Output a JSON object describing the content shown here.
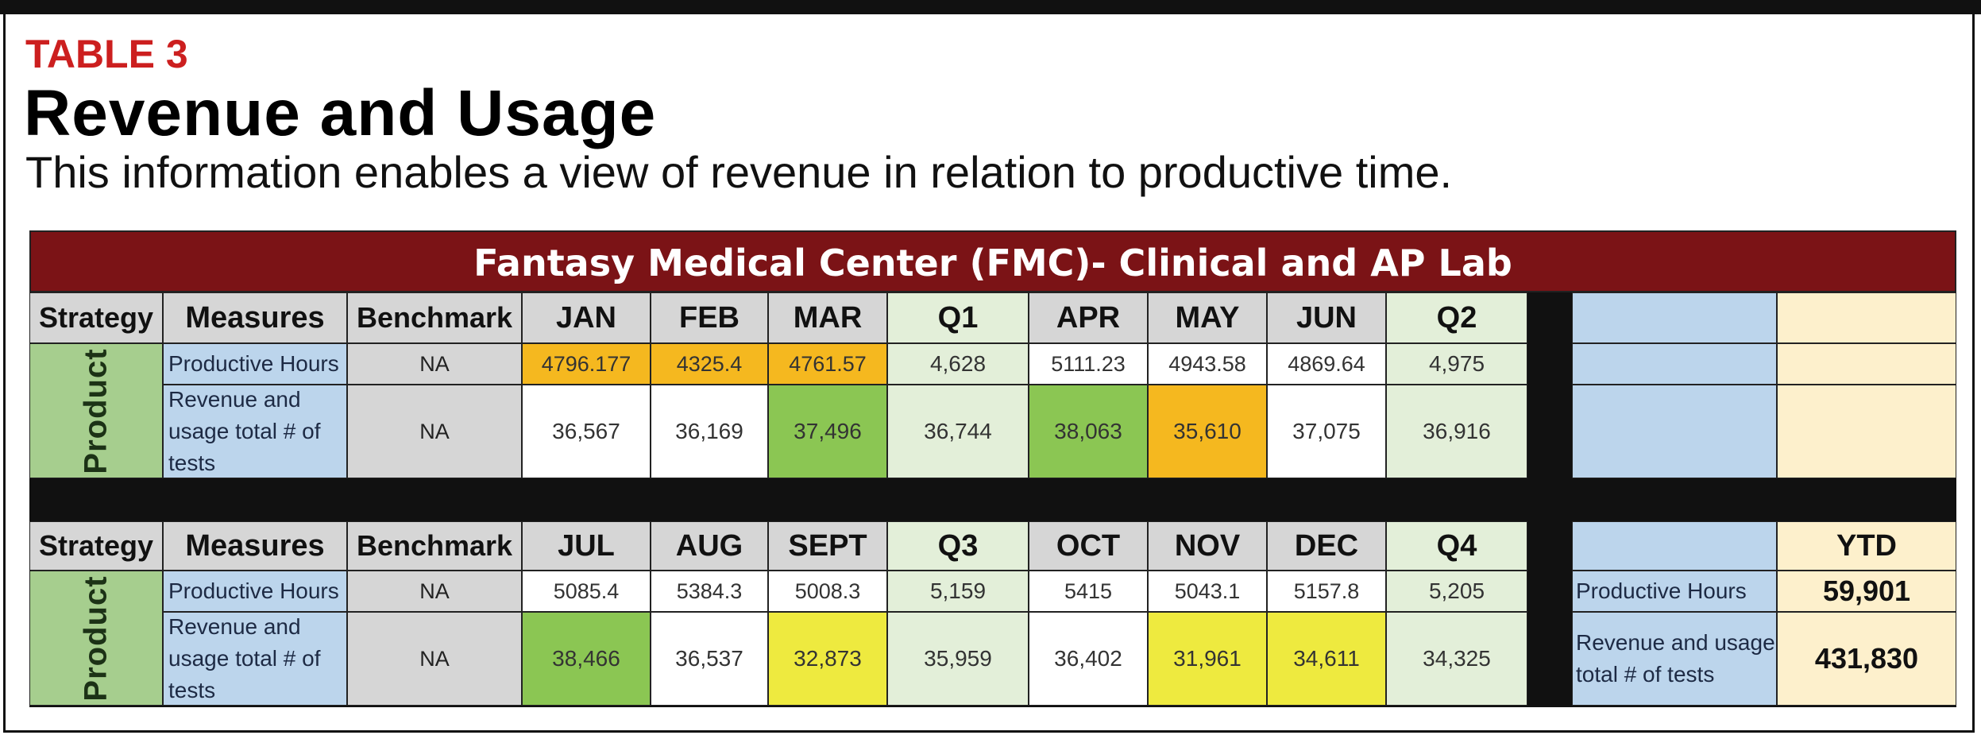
{
  "table_label": "TABLE 3",
  "title": "Revenue and Usage",
  "subtitle": "This information enables a view of revenue in relation to productive time.",
  "banner": "Fantasy Medical Center (FMC)- Clinical and AP Lab",
  "headers": {
    "strategy": "Strategy",
    "measures": "Measures",
    "benchmark": "Benchmark",
    "ytd": "YTD"
  },
  "sections": [
    {
      "strategy": "Product",
      "months": [
        "JAN",
        "FEB",
        "MAR",
        "Q1",
        "APR",
        "MAY",
        "JUN",
        "Q2"
      ],
      "rows": [
        {
          "measure": "Productive Hours",
          "benchmark": "NA",
          "values": [
            "4796.177",
            "4325.4",
            "4761.57",
            "4,628",
            "5111.23",
            "4943.58",
            "4869.64",
            "4,975"
          ]
        },
        {
          "measure": "Revenue and usage total # of tests",
          "benchmark": "NA",
          "values": [
            "36,567",
            "36,169",
            "37,496",
            "36,744",
            "38,063",
            "35,610",
            "37,075",
            "36,916"
          ]
        }
      ]
    },
    {
      "strategy": "Product",
      "months": [
        "JUL",
        "AUG",
        "SEPT",
        "Q3",
        "OCT",
        "NOV",
        "DEC",
        "Q4"
      ],
      "rows": [
        {
          "measure": "Productive Hours",
          "benchmark": "NA",
          "values": [
            "5085.4",
            "5384.3",
            "5008.3",
            "5,159",
            "5415",
            "5043.1",
            "5157.8",
            "5,205"
          ]
        },
        {
          "measure": "Revenue and usage total # of tests",
          "benchmark": "NA",
          "values": [
            "38,466",
            "36,537",
            "32,873",
            "35,959",
            "36,402",
            "31,961",
            "34,611",
            "34,325"
          ]
        }
      ]
    }
  ],
  "ytd": {
    "rows": [
      {
        "label": "Productive Hours",
        "value": "59,901"
      },
      {
        "label": "Revenue and usage total # of tests",
        "value": "431,830"
      }
    ]
  },
  "colors": {
    "banner": "#7b1316",
    "table_label": "#cc1f1f",
    "orange": "#f5b81f",
    "green": "#8bc653",
    "yellow": "#eeea3f",
    "quarter": "#e3efd9",
    "measure_blue": "#bcd5ec",
    "ytd_cream": "#fdf0cc"
  }
}
